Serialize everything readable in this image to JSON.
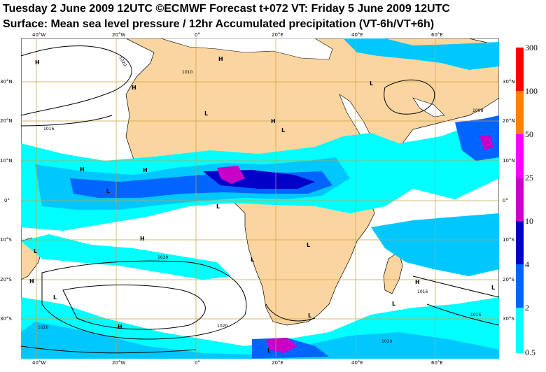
{
  "title_line1": "Tuesday 2 June 2009 12UTC ©ECMWF Forecast t+072 VT: Friday 5 June 2009 12UTC",
  "title_line2": "Surface: Mean sea level pressure / 12hr Accumulated precipitation (VT-6h/VT+6h)",
  "colors": {
    "land": "#fbd5a0",
    "sea": "#ffffff",
    "grid": "#c8a040",
    "precip_0_5": "#00ffff",
    "precip_2": "#00c8ff",
    "precip_4": "#0064ff",
    "precip_10": "#0000c8",
    "precip_25": "#c800c8",
    "precip_50": "#ff00ff",
    "precip_100": "#ff8000",
    "precip_300": "#ff0000"
  },
  "lat_labels_left": [
    "30°N",
    "20°N",
    "10°N",
    "0°",
    "10°S",
    "20°S",
    "30°S"
  ],
  "lat_labels_right": [
    "30°N",
    "20°N",
    "10°N",
    "0°",
    "10°S",
    "20°S",
    "30°S"
  ],
  "lon_labels": [
    "40°W",
    "20°W",
    "0°",
    "20°E",
    "40°E",
    "60°E"
  ],
  "colorbar": {
    "levels": [
      "300",
      "100",
      "50",
      "25",
      "10",
      "4",
      "2",
      "0.5"
    ]
  },
  "pressure_centers": [
    "H",
    "H",
    "H",
    "L",
    "H",
    "L",
    "H",
    "H",
    "L",
    "L",
    "L",
    "H",
    "L",
    "L",
    "L",
    "H",
    "L",
    "L",
    "H",
    "L",
    "L",
    "L",
    "H"
  ],
  "isobar_labels": [
    "1020",
    "1016",
    "1010",
    "1020",
    "1020",
    "1020",
    "1008",
    "1020",
    "1016",
    "1016"
  ]
}
